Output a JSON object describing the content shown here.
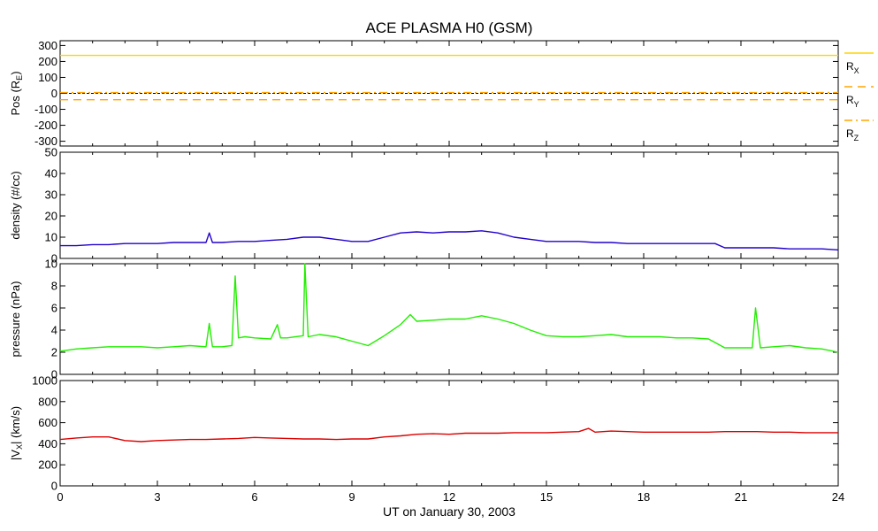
{
  "chart_data": {
    "title": "ACE PLASMA H0 (GSM)",
    "xlabel": "UT on January 30, 2003",
    "x_ticks": [
      "0",
      "3",
      "6",
      "9",
      "12",
      "15",
      "18",
      "21",
      "24"
    ],
    "xlim": [
      0,
      24
    ],
    "grid": false,
    "panels": [
      {
        "id": "pos",
        "type": "line",
        "ylabel": [
          "Pos (R",
          "E",
          ")"
        ],
        "ylim": [
          -330,
          330
        ],
        "y_ticks": [
          300,
          200,
          100,
          0,
          -100,
          -200,
          -300
        ],
        "y_tick_labels": [
          "300",
          "200",
          "100",
          "0",
          "-100",
          "-200",
          "-300"
        ],
        "zero_line": true,
        "legend": [
          {
            "base": "R",
            "sub": "X",
            "color": "#ffd300",
            "dash": "solid"
          },
          {
            "base": "R",
            "sub": "Y",
            "color": "#ffa500",
            "dash": "dashed"
          },
          {
            "base": "R",
            "sub": "Z",
            "color": "#ffa500",
            "dash": "dashdot"
          }
        ],
        "series": [
          {
            "name": "RX",
            "color": "#ffd300",
            "dash": "solid",
            "x": [
              0,
              24
            ],
            "y": [
              238,
              238
            ]
          },
          {
            "name": "RY",
            "color": "#ffa500",
            "dash": "dashed",
            "x": [
              0,
              24
            ],
            "y": [
              -40,
              -40
            ]
          },
          {
            "name": "RZ",
            "color": "#ffa500",
            "dash": "dashdot",
            "x": [
              0,
              24
            ],
            "y": [
              5,
              5
            ]
          }
        ]
      },
      {
        "id": "density",
        "type": "line",
        "ylabel": [
          "density (#/cc)"
        ],
        "ylim": [
          0,
          50
        ],
        "y_ticks": [
          50,
          40,
          30,
          20,
          10,
          0
        ],
        "y_tick_labels": [
          "50",
          "40",
          "30",
          "20",
          "10",
          "0"
        ],
        "series": [
          {
            "color": "#2200cc",
            "x": [
              0,
              0.5,
              1,
              1.5,
              2,
              2.5,
              3,
              3.5,
              4,
              4.5,
              4.6,
              4.7,
              5,
              5.5,
              6,
              6.5,
              7,
              7.5,
              8,
              8.5,
              9,
              9.5,
              10,
              10.5,
              11,
              11.5,
              12,
              12.5,
              13,
              13.5,
              14,
              14.5,
              15,
              15.5,
              16,
              16.5,
              17,
              17.5,
              18,
              18.5,
              19,
              19.5,
              20,
              20.2,
              20.5,
              21,
              21.5,
              22,
              22.5,
              23,
              23.5,
              24
            ],
            "y": [
              6,
              6,
              6.5,
              6.5,
              7,
              7,
              7,
              7.5,
              7.5,
              7.5,
              12,
              7.5,
              7.5,
              8,
              8,
              8.5,
              9,
              10,
              10,
              9,
              8,
              8,
              10,
              12,
              12.5,
              12,
              12.5,
              12.5,
              13,
              12,
              10,
              9,
              8,
              8,
              8,
              7.5,
              7.5,
              7,
              7,
              7,
              7,
              7,
              7,
              7,
              5,
              5,
              5,
              5,
              4.5,
              4.5,
              4.5,
              4
            ]
          }
        ]
      },
      {
        "id": "pressure",
        "type": "line",
        "ylabel": [
          "pressure (nPa)"
        ],
        "ylim": [
          0,
          10
        ],
        "y_ticks": [
          10,
          8,
          6,
          4,
          2,
          0
        ],
        "y_tick_labels": [
          "10",
          "8",
          "6",
          "4",
          "2",
          "0"
        ],
        "series": [
          {
            "color": "#22ee00",
            "x": [
              0,
              0.5,
              1,
              1.5,
              2,
              2.5,
              3,
              3.5,
              4,
              4.5,
              4.6,
              4.7,
              5,
              5.3,
              5.4,
              5.5,
              5.7,
              6,
              6.5,
              6.7,
              6.8,
              7,
              7.5,
              7.55,
              7.65,
              8,
              8.5,
              9,
              9.5,
              10,
              10.5,
              10.8,
              11,
              11.5,
              12,
              12.5,
              13,
              13.5,
              14,
              14.5,
              15,
              15.5,
              16,
              16.5,
              17,
              17.5,
              18,
              18.5,
              19,
              19.5,
              20,
              20.5,
              21,
              21.35,
              21.45,
              21.6,
              22,
              22.5,
              23,
              23.5,
              24
            ],
            "y": [
              2.1,
              2.3,
              2.4,
              2.5,
              2.5,
              2.5,
              2.4,
              2.5,
              2.6,
              2.5,
              4.6,
              2.5,
              2.5,
              2.6,
              8.9,
              3.3,
              3.4,
              3.3,
              3.2,
              4.5,
              3.3,
              3.3,
              3.5,
              10,
              3.4,
              3.6,
              3.4,
              3.0,
              2.6,
              3.5,
              4.5,
              5.4,
              4.8,
              4.9,
              5.0,
              5.0,
              5.3,
              5.0,
              4.6,
              4.0,
              3.5,
              3.4,
              3.4,
              3.5,
              3.6,
              3.4,
              3.4,
              3.4,
              3.3,
              3.3,
              3.2,
              2.4,
              2.4,
              2.4,
              6.0,
              2.4,
              2.5,
              2.6,
              2.4,
              2.3,
              2.0
            ]
          }
        ]
      },
      {
        "id": "vx",
        "type": "line",
        "ylabel": [
          "|V",
          "X",
          "| (km/s)"
        ],
        "ylim": [
          0,
          1000
        ],
        "y_ticks": [
          1000,
          800,
          600,
          400,
          200,
          0
        ],
        "y_tick_labels": [
          "1000",
          "800",
          "600",
          "400",
          "200",
          "0"
        ],
        "series": [
          {
            "color": "#dd0000",
            "x": [
              0,
              0.5,
              1,
              1.5,
              2,
              2.5,
              3,
              3.5,
              4,
              4.5,
              5,
              5.5,
              6,
              6.5,
              7,
              7.5,
              8,
              8.5,
              9,
              9.5,
              10,
              10.5,
              11,
              11.5,
              12,
              12.5,
              13,
              13.5,
              14,
              14.5,
              15,
              15.5,
              16,
              16.3,
              16.5,
              17,
              17.5,
              18,
              18.5,
              19,
              19.5,
              20,
              20.5,
              21,
              21.5,
              22,
              22.5,
              23,
              23.5,
              24
            ],
            "y": [
              440,
              455,
              465,
              465,
              430,
              420,
              430,
              435,
              440,
              440,
              445,
              450,
              460,
              455,
              450,
              445,
              445,
              440,
              445,
              445,
              465,
              475,
              490,
              495,
              490,
              500,
              500,
              500,
              505,
              505,
              505,
              510,
              515,
              545,
              510,
              520,
              515,
              510,
              510,
              510,
              510,
              510,
              515,
              515,
              515,
              510,
              510,
              505,
              505,
              505
            ]
          }
        ]
      }
    ]
  }
}
